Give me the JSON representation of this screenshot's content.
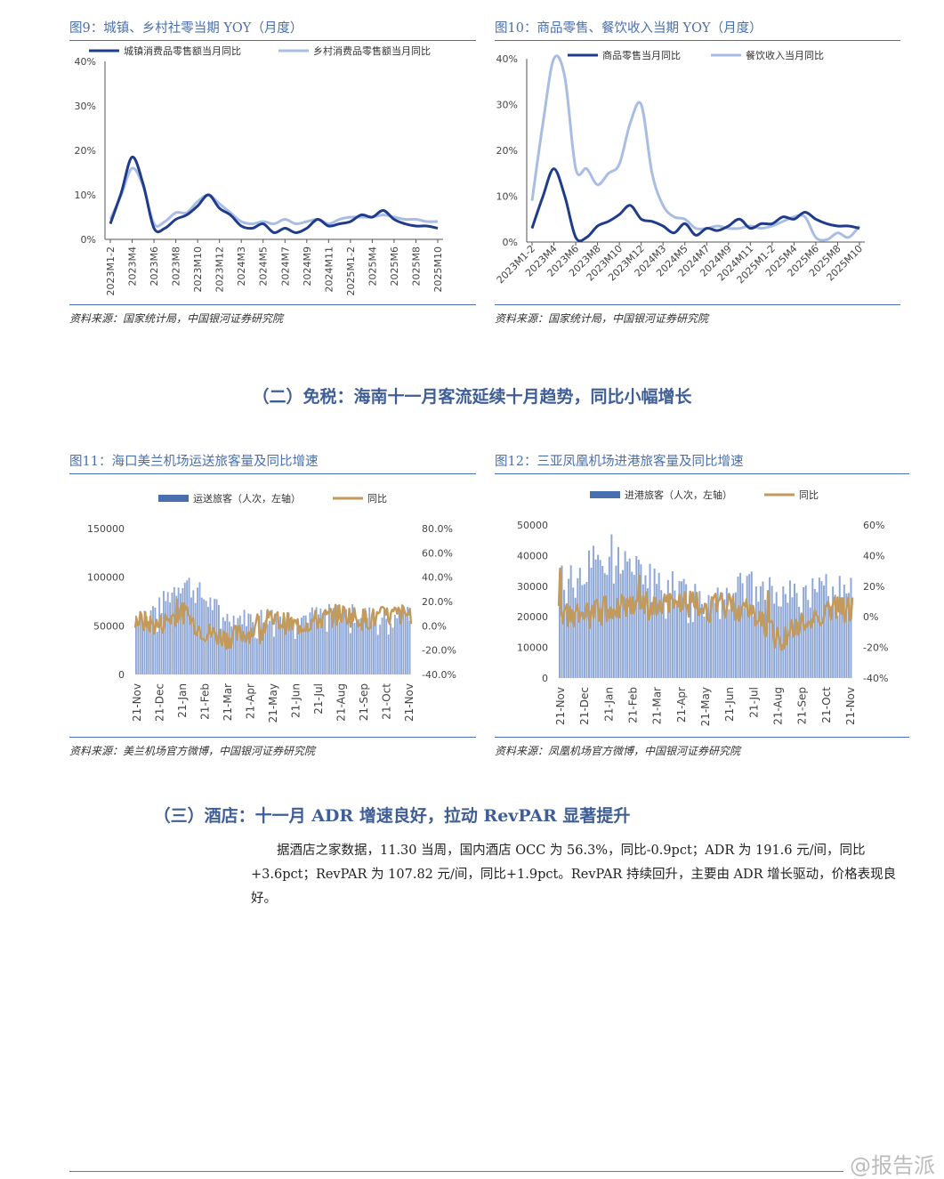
{
  "figures": [
    {
      "id": "fig9",
      "title": "图9：城镇、乡村社零当期 YOY（月度）",
      "source": "资料来源：国家统计局，中国银河证券研究院"
    },
    {
      "id": "fig10",
      "title": "图10：商品零售、餐饮收入当期 YOY（月度）",
      "source": "资料来源：国家统计局，中国银河证券研究院"
    },
    {
      "id": "fig11",
      "title": "图11：海口美兰机场运送旅客量及同比增速",
      "source": "资料来源：美兰机场官方微博，中国银河证券研究院"
    },
    {
      "id": "fig12",
      "title": "图12：三亚凤凰机场进港旅客量及同比增速",
      "source": "资料来源：凤凰机场官方微博，中国银河证券研究院"
    }
  ],
  "sections": {
    "duty_free": "（二）免税：海南十一月客流延续十月趋势，同比小幅增长",
    "hotel": "（三）酒店：十一月 ADR 增速良好，拉动 RevPAR 显著提升"
  },
  "paragraph": "据酒店之家数据，11.30 当周，国内酒店 OCC 为 56.3%，同比-0.9pct；ADR 为 191.6 元/间，同比+3.6pct；RevPAR 为 107.82 元/间，同比+1.9pct。RevPAR 持续回升，主要由 ADR 增长驱动，价格表现良好。",
  "watermark": "@报告派",
  "colors": {
    "dark_blue": "#1f3c8c",
    "light_blue": "#a9bde4",
    "bar_blue": "#8ea7d6",
    "legend_bar": "#4a6fae",
    "gold": "#c49a5a",
    "title_blue": "#4a6fae"
  },
  "chart_data": [
    {
      "id": "fig9",
      "type": "line",
      "x": [
        "2023M1-2",
        "2023M3",
        "2023M4",
        "2023M5",
        "2023M6",
        "2023M7",
        "2023M8",
        "2023M9",
        "2023M10",
        "2023M11",
        "2023M12",
        "2024M1-2",
        "2024M3",
        "2024M4",
        "2024M5",
        "2024M6",
        "2024M7",
        "2024M8",
        "2024M9",
        "2024M10",
        "2024M11",
        "2024M12",
        "2025M1-2",
        "2025M3",
        "2025M4",
        "2025M5",
        "2025M6",
        "2025M7",
        "2025M8",
        "2025M9",
        "2025M10"
      ],
      "tick_labels": [
        "2023M1-2",
        "2023M4",
        "2023M6",
        "2023M8",
        "2023M10",
        "2023M12",
        "2024M3",
        "2024M5",
        "2024M7",
        "2024M9",
        "2024M11",
        "2025M1-2",
        "2025M4",
        "2025M6",
        "2025M8",
        "2025M10"
      ],
      "series": [
        {
          "name": "城镇消费品零售额当月同比",
          "values": [
            3.5,
            10.5,
            18.5,
            12.5,
            2.5,
            2.5,
            4.5,
            5.5,
            7.5,
            10,
            7,
            5.5,
            3,
            2.5,
            3.5,
            1.5,
            2.5,
            1.5,
            2.5,
            4.5,
            3,
            3.5,
            4,
            5.5,
            5,
            6.5,
            4.5,
            3.5,
            3,
            3,
            2.5
          ]
        },
        {
          "name": "乡村消费品零售额当月同比",
          "values": [
            4.5,
            10,
            16,
            12,
            3.5,
            4,
            6,
            6,
            8.5,
            10,
            8,
            6,
            4,
            3.5,
            4,
            3.5,
            4.5,
            3.5,
            4,
            4.5,
            3.5,
            4.5,
            5,
            5,
            5,
            5.5,
            5,
            4.5,
            4.5,
            4,
            4
          ]
        }
      ],
      "ylim": [
        0,
        40
      ],
      "yticks": [
        "0%",
        "10%",
        "20%",
        "30%",
        "40%"
      ]
    },
    {
      "id": "fig10",
      "type": "line",
      "x": [
        "2023M1-2",
        "2023M3",
        "2023M4",
        "2023M5",
        "2023M6",
        "2023M7",
        "2023M8",
        "2023M9",
        "2023M10",
        "2023M11",
        "2023M12",
        "2024M1-2",
        "2024M3",
        "2024M4",
        "2024M5",
        "2024M6",
        "2024M7",
        "2024M8",
        "2024M9",
        "2024M10",
        "2024M11",
        "2024M12",
        "2025M1-2",
        "2025M3",
        "2025M4",
        "2025M5",
        "2025M6",
        "2025M7",
        "2025M8",
        "2025M9",
        "2025M10"
      ],
      "tick_labels": [
        "2023M1-2",
        "2023M4",
        "2023M6",
        "2023M8",
        "2023M10",
        "2023M12",
        "2024M3",
        "2024M5",
        "2024M7",
        "2024M9",
        "2024M11",
        "2025M1-2",
        "2025M4",
        "2025M6",
        "2025M8",
        "2025M10"
      ],
      "series": [
        {
          "name": "商品零售当月同比",
          "values": [
            3,
            10,
            16,
            10,
            1,
            1,
            3.5,
            4.5,
            6,
            8,
            5,
            4.5,
            3.5,
            2,
            4,
            1.5,
            3,
            2.5,
            3.5,
            5,
            3,
            4,
            4,
            5.5,
            5,
            6.5,
            5,
            4,
            3.5,
            3.5,
            3
          ]
        },
        {
          "name": "餐饮收入当月同比",
          "values": [
            9,
            26,
            40,
            36,
            16,
            16,
            12.5,
            15,
            17,
            26,
            30,
            15,
            8,
            5.5,
            5,
            3,
            3,
            3.5,
            3,
            3,
            3.5,
            3,
            3.5,
            4.5,
            5.5,
            5.5,
            1,
            0.5,
            2,
            1,
            3.5
          ]
        }
      ],
      "ylim": [
        0,
        40
      ],
      "yticks": [
        "0%",
        "10%",
        "20%",
        "30%",
        "40%"
      ]
    },
    {
      "id": "fig11",
      "type": "bar+line",
      "categories": [
        "21-Nov",
        "21-Dec",
        "21-Jan",
        "21-Feb",
        "21-Mar",
        "21-Apr",
        "21-May",
        "21-Jun",
        "21-Jul",
        "21-Aug",
        "21-Sep",
        "21-Oct",
        "21-Nov"
      ],
      "series": [
        {
          "name": "运送旅客（人次，左轴）",
          "axis": "left",
          "type": "bar",
          "monthly_levels": [
            62000,
            70000,
            100000,
            80000,
            60000,
            60000,
            62000,
            60000,
            63000,
            65000,
            63000,
            60000,
            65000
          ]
        },
        {
          "name": "同比",
          "axis": "right",
          "type": "line",
          "monthly_levels_pct": [
            5,
            0,
            12,
            -5,
            -10,
            -5,
            5,
            0,
            5,
            10,
            5,
            8,
            10
          ]
        }
      ],
      "left_ticks": [
        "0",
        "50000",
        "100000",
        "150000"
      ],
      "left_range": [
        0,
        150000
      ],
      "right_ticks": [
        "-40.0%",
        "-20.0%",
        "0.0%",
        "20.0%",
        "40.0%",
        "60.0%",
        "80.0%"
      ],
      "right_range": [
        -40,
        80
      ]
    },
    {
      "id": "fig12",
      "type": "bar+line",
      "categories": [
        "21-Nov",
        "21-Dec",
        "21-Jan",
        "21-Feb",
        "21-Mar",
        "21-Apr",
        "21-May",
        "21-Jun",
        "21-Jul",
        "21-Aug",
        "21-Sep",
        "21-Oct",
        "21-Nov"
      ],
      "series": [
        {
          "name": "进港旅客（人次，左轴）",
          "axis": "left",
          "type": "bar",
          "monthly_levels": [
            33000,
            36000,
            43000,
            37000,
            32000,
            30000,
            28000,
            30000,
            31000,
            28000,
            28000,
            30000,
            33000
          ]
        },
        {
          "name": "同比",
          "axis": "right",
          "type": "line",
          "monthly_levels_pct": [
            0,
            0,
            5,
            10,
            5,
            10,
            5,
            8,
            2,
            -15,
            -5,
            5,
            5
          ]
        }
      ],
      "left_ticks": [
        "0",
        "10000",
        "20000",
        "30000",
        "40000",
        "50000"
      ],
      "left_range": [
        0,
        50000
      ],
      "right_ticks": [
        "-40%",
        "-20%",
        "0%",
        "20%",
        "40%",
        "60%"
      ],
      "right_range": [
        -40,
        60
      ]
    }
  ]
}
